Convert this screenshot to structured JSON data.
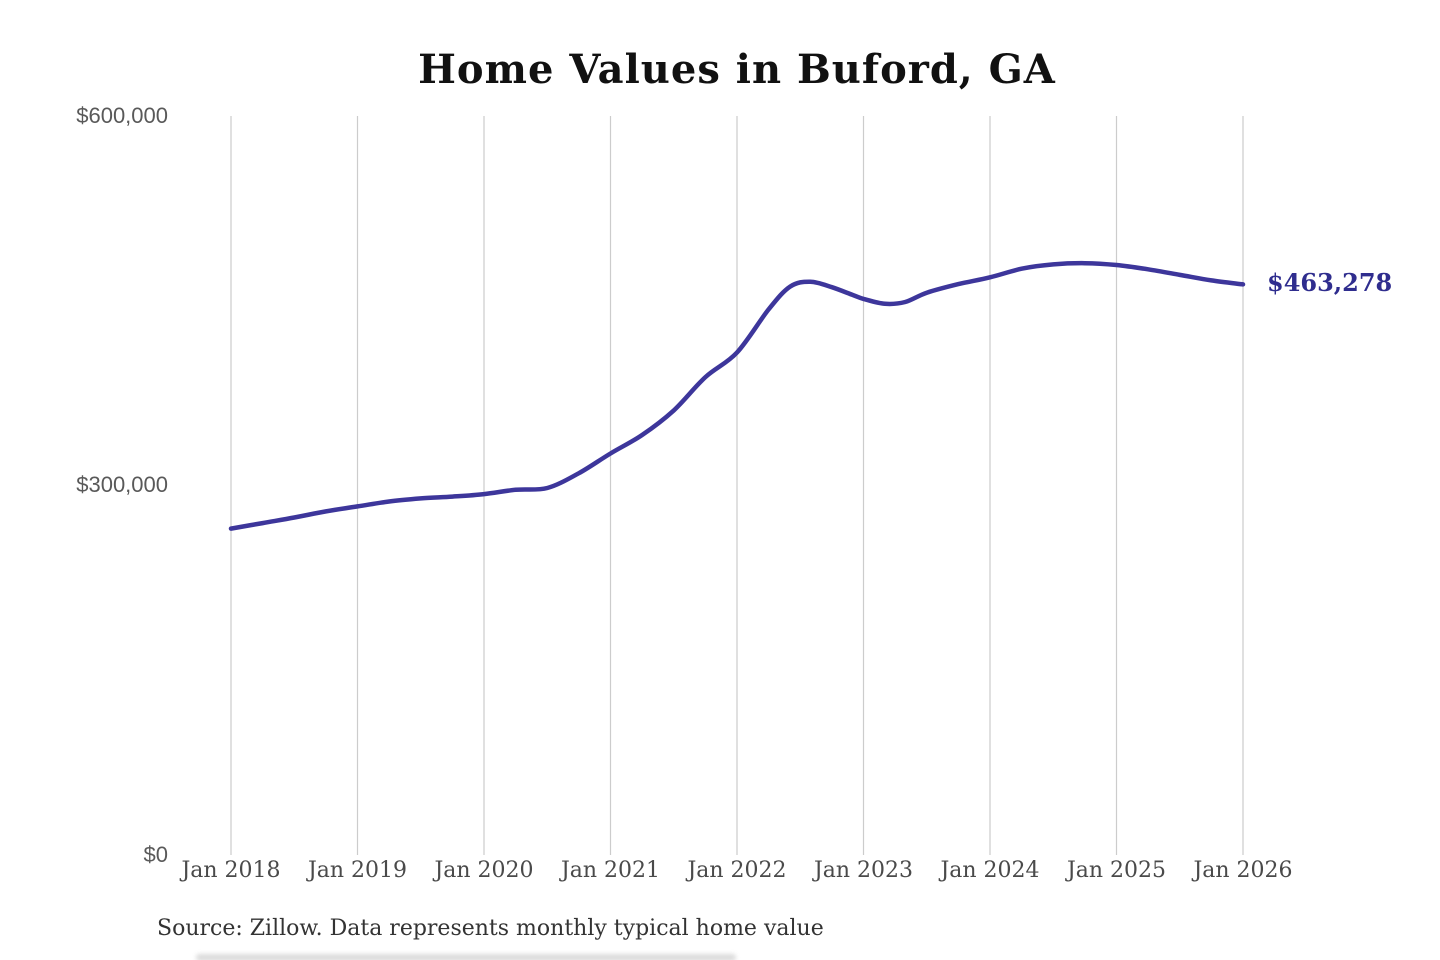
{
  "chart_data": {
    "type": "line",
    "title": "Home Values in Buford, GA",
    "xlabel": "",
    "ylabel": "",
    "xlim": [
      2018,
      2026
    ],
    "ylim": [
      0,
      600000
    ],
    "grid": "vertical-only",
    "legend": "none",
    "x_ticks": [
      {
        "label": "Jan 2018",
        "value": 2018
      },
      {
        "label": "Jan 2019",
        "value": 2019
      },
      {
        "label": "Jan 2020",
        "value": 2020
      },
      {
        "label": "Jan 2021",
        "value": 2021
      },
      {
        "label": "Jan 2022",
        "value": 2022
      },
      {
        "label": "Jan 2023",
        "value": 2023
      },
      {
        "label": "Jan 2024",
        "value": 2024
      },
      {
        "label": "Jan 2025",
        "value": 2025
      },
      {
        "label": "Jan 2026",
        "value": 2026
      }
    ],
    "y_ticks": [
      {
        "label": "$600,000",
        "value": 600000
      },
      {
        "label": "$300,000",
        "value": 300000
      },
      {
        "label": "$0",
        "value": 0
      }
    ],
    "series": [
      {
        "name": "Monthly typical home value",
        "points": [
          [
            2018.0,
            265000
          ],
          [
            2018.25,
            269500
          ],
          [
            2018.5,
            274000
          ],
          [
            2018.75,
            279000
          ],
          [
            2019.0,
            283000
          ],
          [
            2019.25,
            287000
          ],
          [
            2019.5,
            289500
          ],
          [
            2019.75,
            291000
          ],
          [
            2020.0,
            293000
          ],
          [
            2020.25,
            296500
          ],
          [
            2020.5,
            298000
          ],
          [
            2020.75,
            310000
          ],
          [
            2021.0,
            326000
          ],
          [
            2021.25,
            341000
          ],
          [
            2021.5,
            361000
          ],
          [
            2021.75,
            388000
          ],
          [
            2022.0,
            408000
          ],
          [
            2022.25,
            443000
          ],
          [
            2022.42,
            461500
          ],
          [
            2022.58,
            465500
          ],
          [
            2022.75,
            461000
          ],
          [
            2022.92,
            454500
          ],
          [
            2023.0,
            451500
          ],
          [
            2023.17,
            447500
          ],
          [
            2023.33,
            449000
          ],
          [
            2023.5,
            456500
          ],
          [
            2023.75,
            463500
          ],
          [
            2024.0,
            469000
          ],
          [
            2024.25,
            476000
          ],
          [
            2024.5,
            479500
          ],
          [
            2024.75,
            480500
          ],
          [
            2025.0,
            479000
          ],
          [
            2025.25,
            475500
          ],
          [
            2025.5,
            471000
          ],
          [
            2025.75,
            466500
          ],
          [
            2026.0,
            463278
          ]
        ]
      }
    ],
    "end_label": "$463,278",
    "end_value": 463278,
    "colors": {
      "line": "#3d369b",
      "grid": "#cccccc",
      "title_text": "#111111",
      "y_axis_text": "#595959",
      "x_axis_text": "#4a4a4a",
      "value_label": "#2f2d8e",
      "source_text": "#333333"
    },
    "source": "Source: Zillow. Data represents monthly typical home value"
  }
}
